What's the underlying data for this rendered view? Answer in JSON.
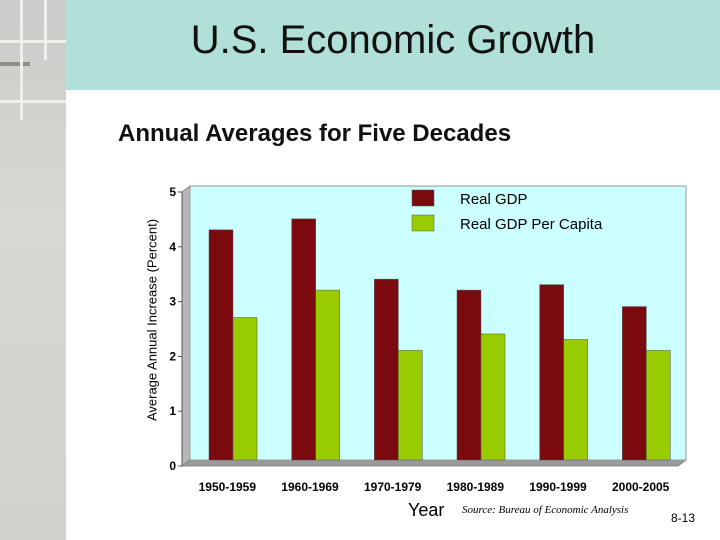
{
  "slide": {
    "title": "U.S. Economic Growth",
    "subtitle": "Annual Averages for Five Decades",
    "source": "Source: Bureau of Economic Analysis",
    "slide_number": "8-13"
  },
  "colors": {
    "series1": "#7a0a0e",
    "series2": "#99cc00",
    "plot_background": "#ccffff",
    "title_band": "#b0e0d8"
  },
  "chart_data": {
    "type": "bar",
    "title": "Annual Averages for Five Decades",
    "xlabel": "Year",
    "ylabel": "Average Annual Increase (Percent)",
    "ylim": [
      0,
      5
    ],
    "yticks": [
      0,
      1,
      2,
      3,
      4,
      5
    ],
    "categories": [
      "1950-1959",
      "1960-1969",
      "1970-1979",
      "1980-1989",
      "1990-1999",
      "2000-2005"
    ],
    "series": [
      {
        "name": "Real GDP",
        "values": [
          4.2,
          4.4,
          3.3,
          3.1,
          3.2,
          2.8
        ]
      },
      {
        "name": "Real GDP Per Capita",
        "values": [
          2.6,
          3.1,
          2.0,
          2.3,
          2.2,
          2.0
        ]
      }
    ],
    "legend_position": "top-right",
    "grid": false
  }
}
